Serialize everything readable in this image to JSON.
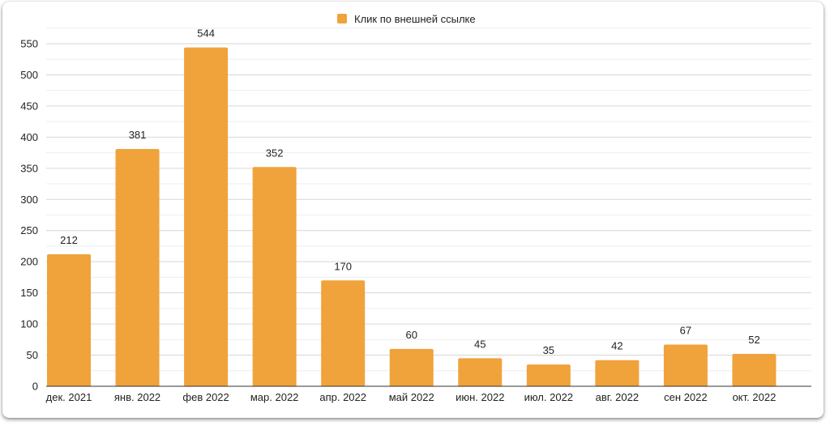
{
  "chart_data": {
    "type": "bar",
    "title": "",
    "xlabel": "",
    "ylabel": "",
    "categories": [
      "дек. 2021",
      "янв. 2022",
      "фев 2022",
      "мар. 2022",
      "апр. 2022",
      "май 2022",
      "июн. 2022",
      "июл. 2022",
      "авг. 2022",
      "сен 2022",
      "окт. 2022"
    ],
    "series": [
      {
        "name": "Клик по внешней ссылке",
        "values": [
          212,
          381,
          544,
          352,
          170,
          60,
          45,
          35,
          42,
          67,
          52
        ],
        "color": "#f0a23b"
      }
    ],
    "ylim": [
      0,
      550
    ],
    "yticks": [
      0,
      50,
      100,
      150,
      200,
      250,
      300,
      350,
      400,
      450,
      500,
      550
    ],
    "grid": true,
    "legend_position": "top",
    "data_labels": true
  }
}
